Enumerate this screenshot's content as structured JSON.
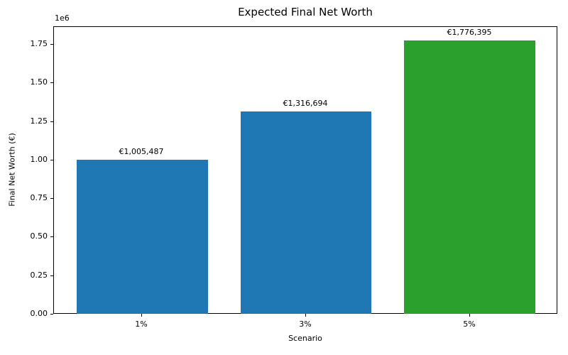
{
  "figure": {
    "background": "#ffffff"
  },
  "chart_data": {
    "type": "bar",
    "title": "Expected Final Net Worth",
    "xlabel": "Scenario",
    "ylabel": "Final Net Worth (€)",
    "offset_text": "1e6",
    "categories": [
      "1%",
      "3%",
      "5%"
    ],
    "values": [
      1005487,
      1316694,
      1776395
    ],
    "bar_labels": [
      "€1,005,487",
      "€1,316,694",
      "€1,776,395"
    ],
    "bar_colors": [
      "#1f77b4",
      "#1f77b4",
      "#2ca02c"
    ],
    "ylim": [
      0,
      1865215
    ],
    "yticks": [
      0,
      250000,
      500000,
      750000,
      1000000,
      1250000,
      1500000,
      1750000
    ],
    "ytick_labels": [
      "0.00",
      "0.25",
      "0.50",
      "0.75",
      "1.00",
      "1.25",
      "1.50",
      "1.75"
    ],
    "xlim": [
      -0.54,
      2.54
    ],
    "bar_width_units": 0.8,
    "grid": false,
    "legend_position": "none",
    "axis_color": "#000000",
    "text_color": "#000000"
  }
}
